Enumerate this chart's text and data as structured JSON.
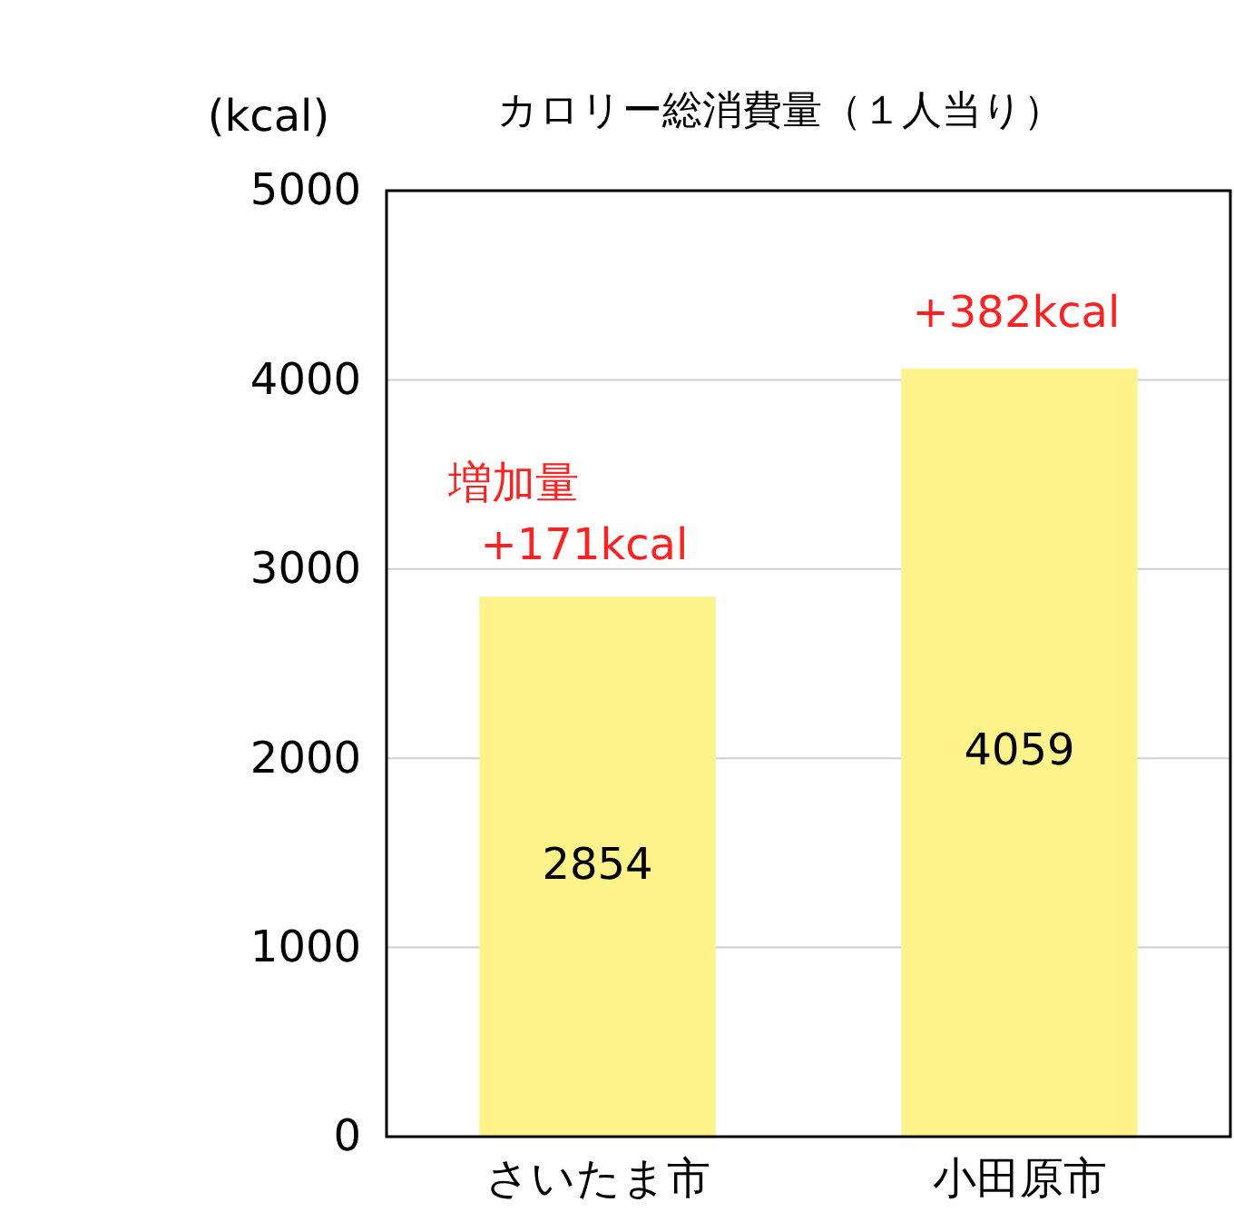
{
  "chart_data": {
    "type": "bar",
    "title": "カロリー総消費量（１人当り）",
    "ylabel": "(kcal)",
    "categories": [
      "さいたま市",
      "小田原市"
    ],
    "values": [
      2854,
      4059
    ],
    "color": "#fdf38a",
    "ylim": [
      0,
      5000
    ],
    "yticks": [
      0,
      1000,
      2000,
      3000,
      4000,
      5000
    ],
    "grid": "y",
    "data_labels": true,
    "annotations": [
      "増加量",
      "+171kcal",
      "+382kcal"
    ]
  }
}
